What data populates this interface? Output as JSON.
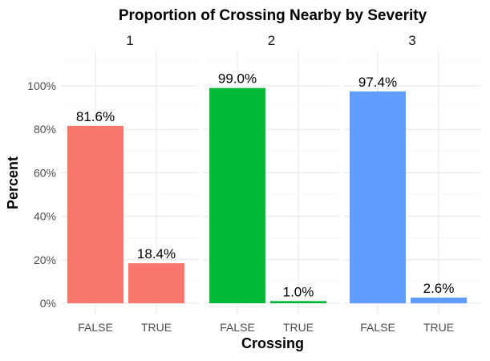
{
  "chart_data": {
    "type": "bar",
    "title": "Proportion of Crossing Nearby by Severity",
    "xlabel": "Crossing",
    "ylabel": "Percent",
    "ylim": [
      0,
      110
    ],
    "y_ticks": [
      0,
      20,
      40,
      60,
      80,
      100
    ],
    "y_tick_labels": [
      "0%",
      "20%",
      "40%",
      "60%",
      "80%",
      "100%"
    ],
    "categories": [
      "FALSE",
      "TRUE"
    ],
    "grid": true,
    "legend": "none",
    "facets": [
      {
        "label": "1",
        "color": "#F8766D",
        "values": [
          81.6,
          18.4
        ],
        "value_labels": [
          "81.6%",
          "18.4%"
        ]
      },
      {
        "label": "2",
        "color": "#00BA38",
        "values": [
          99.0,
          1.0
        ],
        "value_labels": [
          "99.0%",
          "1.0%"
        ]
      },
      {
        "label": "3",
        "color": "#619CFF",
        "values": [
          97.4,
          2.6
        ],
        "value_labels": [
          "97.4%",
          "2.6%"
        ]
      }
    ]
  }
}
